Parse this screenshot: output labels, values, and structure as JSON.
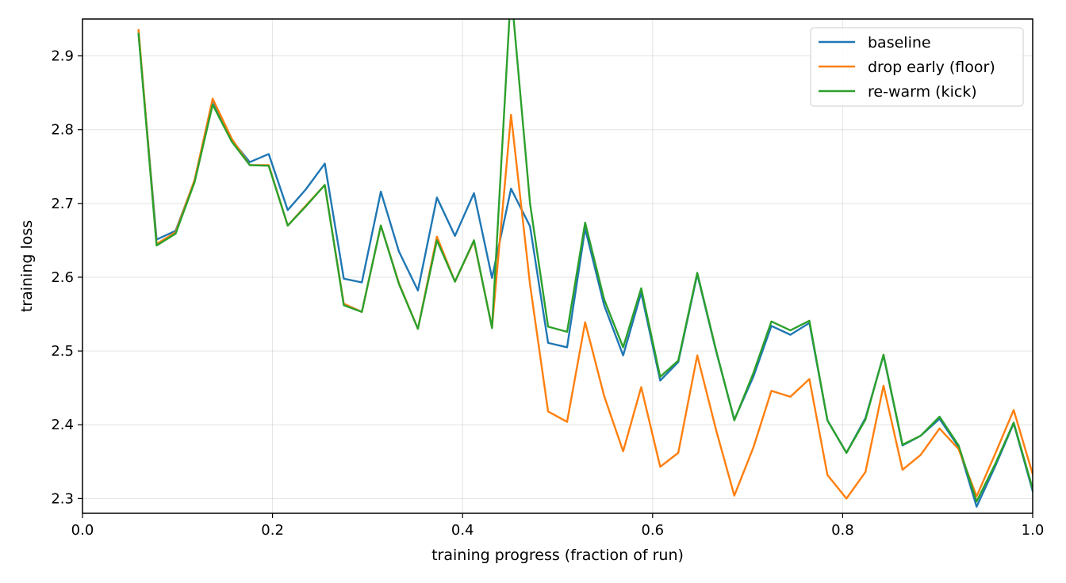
{
  "chart_data": {
    "type": "line",
    "xlabel": "training progress (fraction of run)",
    "ylabel": "training loss",
    "xlim": [
      0.0,
      1.0
    ],
    "ylim": [
      2.28,
      2.95
    ],
    "xticks": [
      "0.0",
      "0.2",
      "0.4",
      "0.6",
      "0.8",
      "1.0"
    ],
    "yticks": [
      "2.3",
      "2.4",
      "2.5",
      "2.6",
      "2.7",
      "2.8",
      "2.9"
    ],
    "grid": true,
    "legend_position": "top-right",
    "x": [
      0.059,
      0.078,
      0.098,
      0.118,
      0.137,
      0.157,
      0.176,
      0.196,
      0.216,
      0.235,
      0.255,
      0.275,
      0.294,
      0.314,
      0.333,
      0.353,
      0.373,
      0.392,
      0.412,
      0.431,
      0.451,
      0.471,
      0.49,
      0.51,
      0.529,
      0.549,
      0.569,
      0.588,
      0.608,
      0.627,
      0.647,
      0.667,
      0.686,
      0.706,
      0.725,
      0.745,
      0.765,
      0.784,
      0.804,
      0.824,
      0.843,
      0.863,
      0.882,
      0.902,
      0.922,
      0.941,
      0.961,
      0.98,
      1.0
    ],
    "series": [
      {
        "name": "baseline",
        "color": "#1f77b4",
        "values": [
          2.93,
          2.651,
          2.663,
          2.731,
          2.84,
          2.786,
          2.756,
          2.767,
          2.691,
          2.719,
          2.754,
          2.598,
          2.593,
          2.716,
          2.635,
          2.582,
          2.708,
          2.656,
          2.714,
          2.599,
          2.72,
          2.669,
          2.511,
          2.505,
          2.666,
          2.562,
          2.494,
          2.579,
          2.46,
          2.485,
          2.604,
          2.499,
          2.407,
          2.465,
          2.534,
          2.522,
          2.538,
          2.406,
          2.362,
          2.409,
          2.494,
          2.372,
          2.385,
          2.408,
          2.37,
          2.289,
          2.345,
          2.402,
          2.31
        ]
      },
      {
        "name": "drop early (floor)",
        "color": "#ff7f0e",
        "values": [
          2.935,
          2.645,
          2.661,
          2.732,
          2.842,
          2.788,
          2.752,
          2.752,
          2.67,
          2.697,
          2.725,
          2.564,
          2.553,
          2.67,
          2.592,
          2.53,
          2.655,
          2.594,
          2.649,
          2.532,
          2.82,
          2.59,
          2.418,
          2.404,
          2.539,
          2.439,
          2.364,
          2.451,
          2.343,
          2.362,
          2.494,
          2.392,
          2.304,
          2.369,
          2.446,
          2.438,
          2.462,
          2.332,
          2.3,
          2.336,
          2.453,
          2.339,
          2.359,
          2.395,
          2.367,
          2.303,
          2.362,
          2.42,
          2.333
        ]
      },
      {
        "name": "re-warm (kick)",
        "color": "#2ca02c",
        "values": [
          2.93,
          2.643,
          2.659,
          2.729,
          2.834,
          2.784,
          2.752,
          2.751,
          2.67,
          2.696,
          2.725,
          2.562,
          2.553,
          2.67,
          2.591,
          2.53,
          2.65,
          2.594,
          2.65,
          2.531,
          2.99,
          2.7,
          2.533,
          2.526,
          2.674,
          2.57,
          2.505,
          2.585,
          2.465,
          2.487,
          2.606,
          2.5,
          2.406,
          2.47,
          2.54,
          2.528,
          2.541,
          2.406,
          2.362,
          2.407,
          2.495,
          2.373,
          2.385,
          2.411,
          2.372,
          2.296,
          2.348,
          2.403,
          2.313
        ]
      }
    ]
  }
}
